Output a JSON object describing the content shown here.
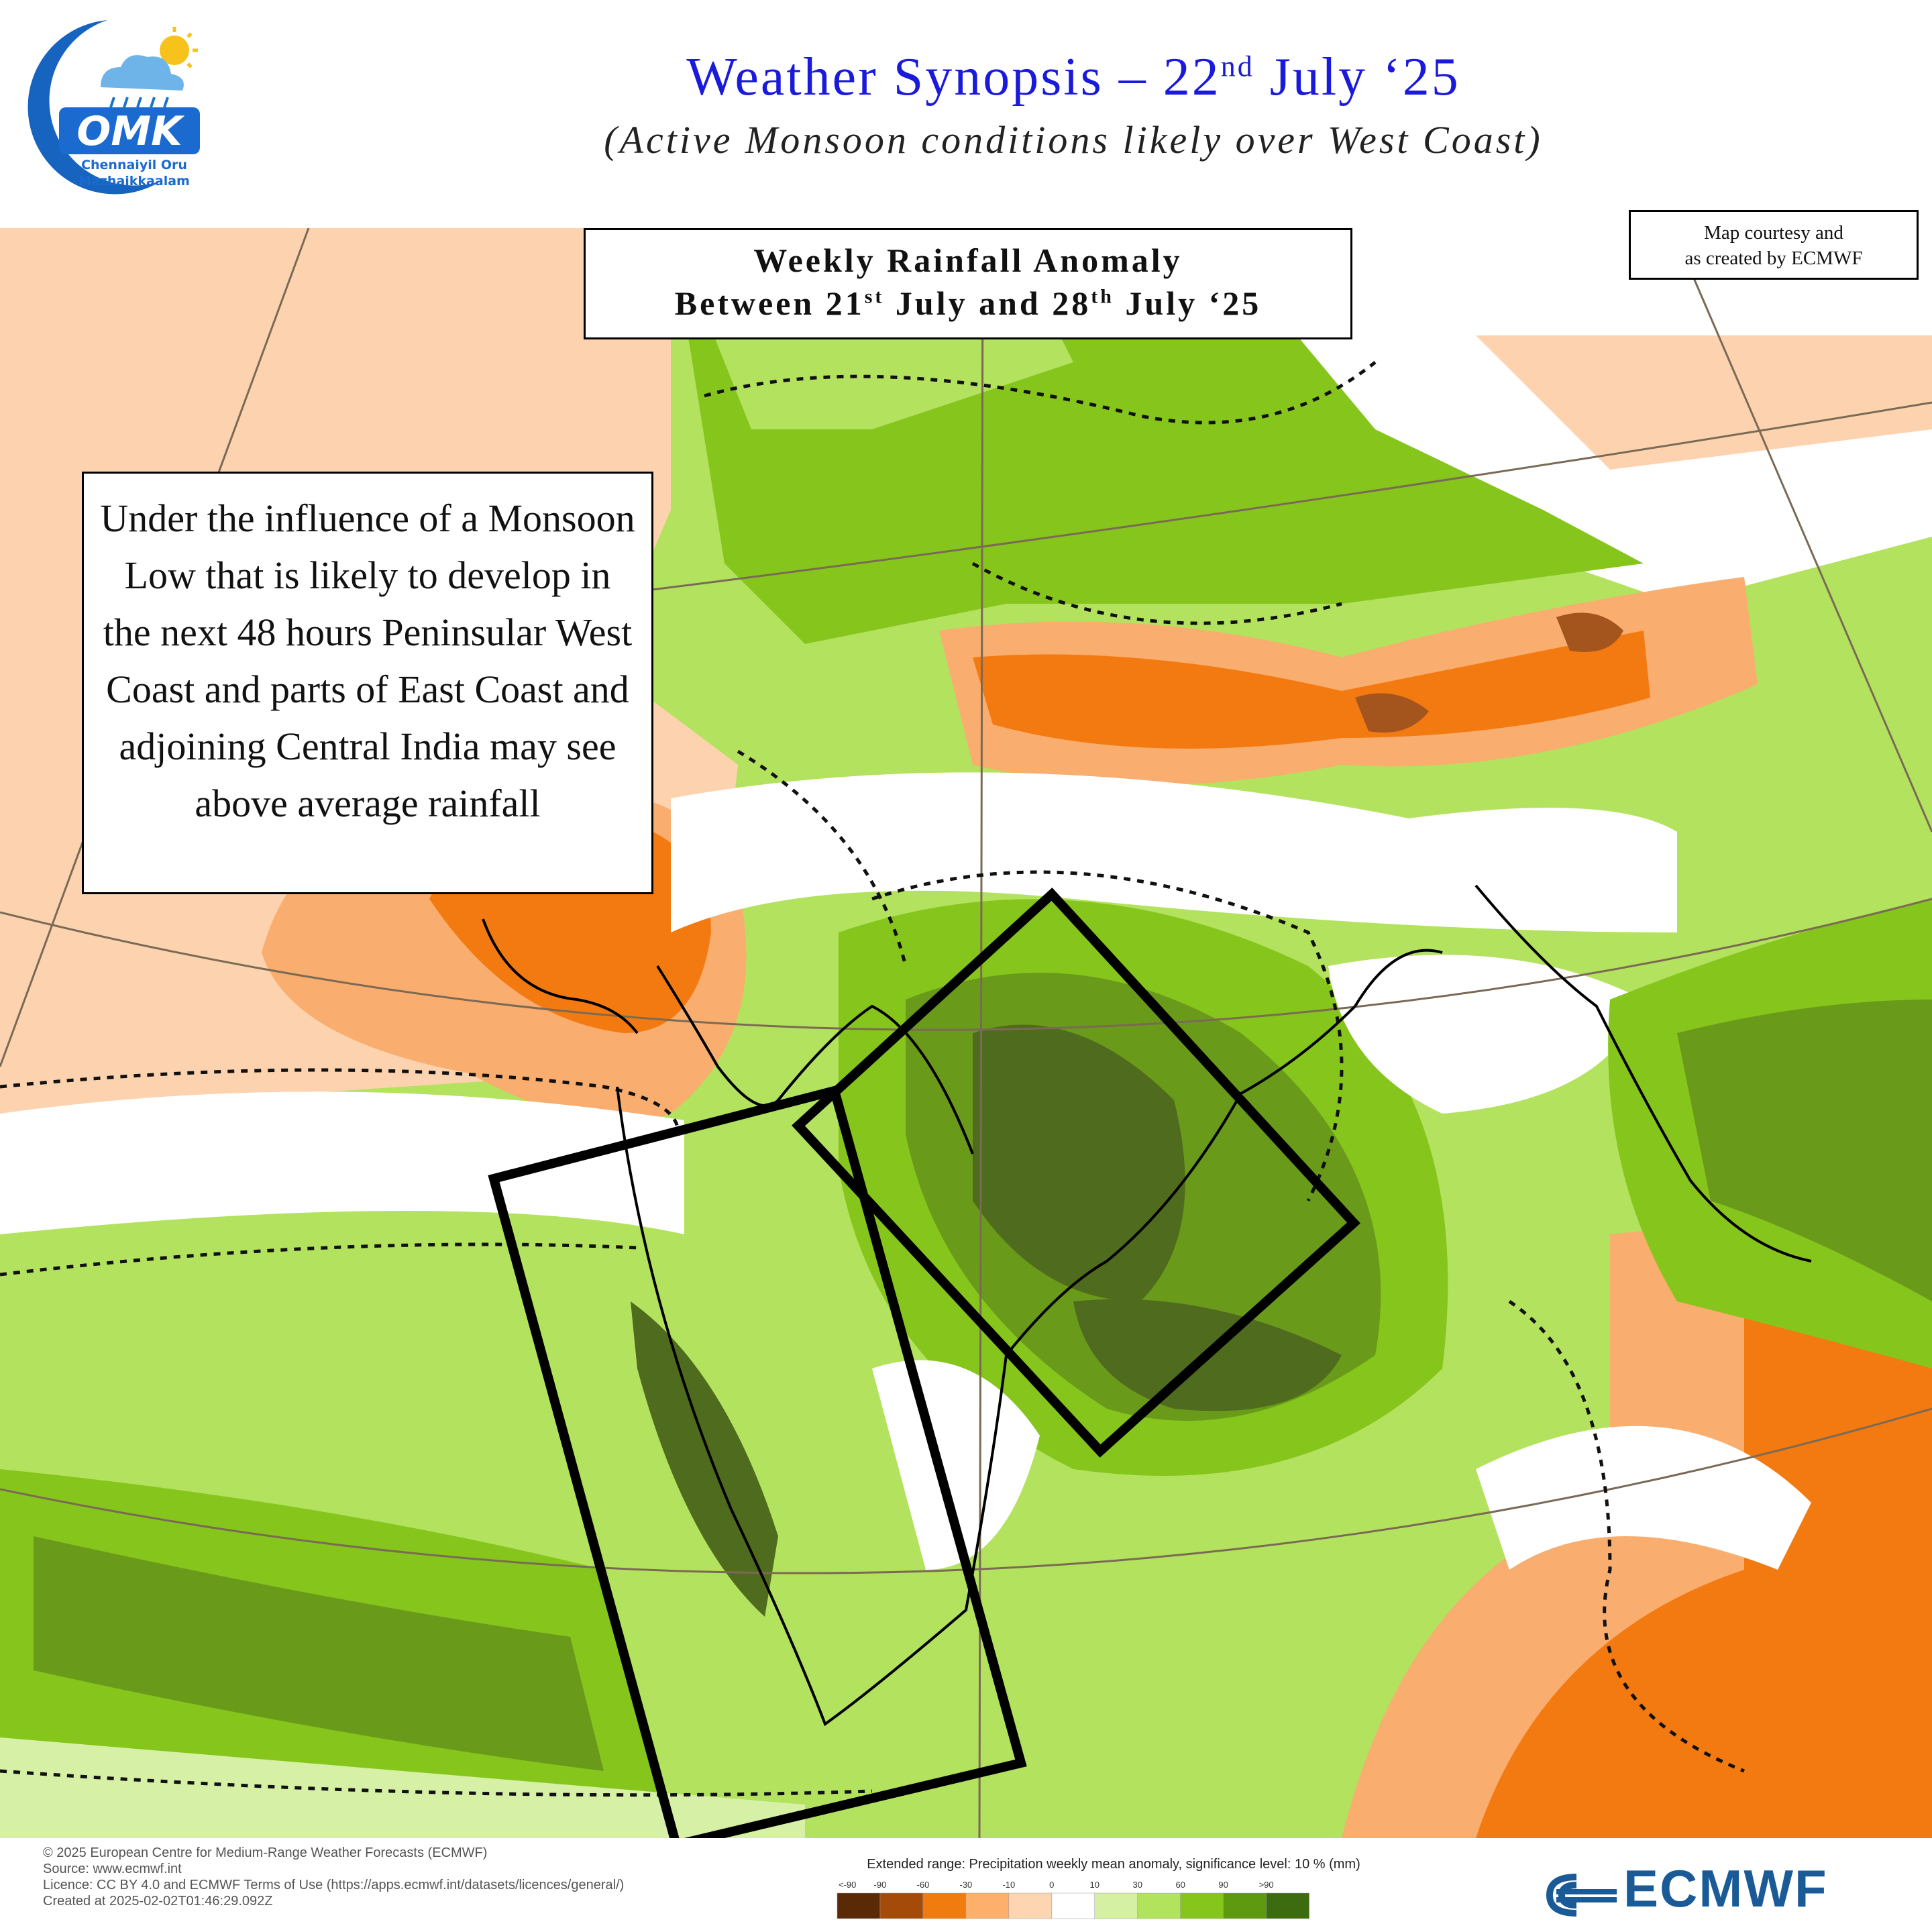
{
  "header": {
    "title_main": "Weather Synopsis – 22",
    "title_sup": "nd",
    "title_tail": " July ‘25",
    "subtitle": "(Active Monsoon conditions likely over West Coast)"
  },
  "logo": {
    "letters": "OMK",
    "name_line1": "Chennaiyil Oru",
    "name_line2": "Mazhaikkaalam",
    "colors": {
      "crescent": "#1664c0",
      "text": "#1b6ad0",
      "sun": "#f7c21b"
    }
  },
  "map_box": {
    "line1": "Weekly Rainfall Anomaly",
    "line2_a": "Between 21",
    "line2_sup1": "st",
    "line2_b": " July and 28",
    "line2_sup2": "th",
    "line2_c": " July ‘25"
  },
  "courtesy": {
    "line1": "Map courtesy and",
    "line2": "as created by ECMWF"
  },
  "callout": {
    "text": "Under the influence of a Monsoon Low that is likely to develop in the next 48 hours Peninsular West Coast and parts of East Coast and adjoining Central India may see above average rainfall"
  },
  "footer": {
    "copyright": "© 2025 European Centre for Medium-Range Weather Forecasts (ECMWF)",
    "source": "Source: www.ecmwf.int",
    "licence": "Licence: CC BY 4.0 and ECMWF Terms of Use (https://apps.ecmwf.int/datasets/licences/general/)",
    "created": "Created at 2025-02-02T01:46:29.092Z",
    "brand": "ECMWF"
  },
  "legend": {
    "title": "Extended range: Precipitation weekly mean anomaly, significance level: 10 % (mm)",
    "labels": [
      "<-90",
      "-90",
      "-60",
      "-30",
      "-10",
      "0",
      "10",
      "30",
      "60",
      "90",
      ">90"
    ],
    "colors": [
      "#5a2a06",
      "#a44b0a",
      "#f07c0f",
      "#fdb06c",
      "#fdd5b0",
      "#ffffff",
      "#d5f0a3",
      "#b1e35c",
      "#86c51c",
      "#5e9a10",
      "#3d6b10"
    ]
  },
  "map_colors": {
    "orange_dark": "#f37a10",
    "orange_mid": "#f9ad6e",
    "peach": "#fcd3ae",
    "brown": "#a4551e",
    "green_pale": "#d6f0a5",
    "green_light": "#b3e25e",
    "green_mid": "#8cc61e",
    "green_dark": "#6a9a1a",
    "olive": "#4f6b1d"
  }
}
